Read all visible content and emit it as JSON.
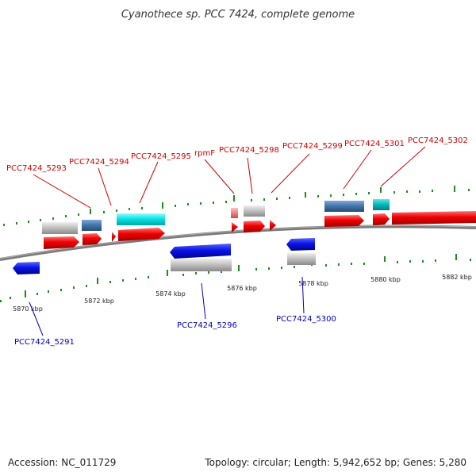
{
  "title": "Cyanothece sp. PCC 7424, complete genome",
  "footer": {
    "accession": "Accession: NC_011729",
    "topology": "Topology: circular; Length: 5,942,652 bp; Genes: 5,280"
  },
  "colors": {
    "cds_forward": "#ee0000",
    "cds_reverse": "#0a14e6",
    "gene_gray": "#bdbdbd",
    "steelblue": "#3f74a8",
    "cyan": "#00dcdc",
    "teal": "#00b8b8",
    "pink": "#f08080",
    "label_red": "#d00000",
    "label_blue": "#0000c0",
    "tick_green": "#1f8a1f",
    "backbone": "#777777"
  },
  "scale": {
    "labels": [
      "5870 kbp",
      "5872 kbp",
      "5874 kbp",
      "5876 kbp",
      "5878 kbp",
      "5880 kbp",
      "5882 kbp"
    ]
  },
  "labels_forward": [
    "PCC7424_5293",
    "PCC7424_5294",
    "PCC7424_5295",
    "rpmF",
    "PCC7424_5298",
    "PCC7424_5299",
    "PCC7424_5301",
    "PCC7424_5302"
  ],
  "labels_reverse": [
    "PCC7424_5291",
    "PCC7424_5296",
    "PCC7424_5300"
  ]
}
